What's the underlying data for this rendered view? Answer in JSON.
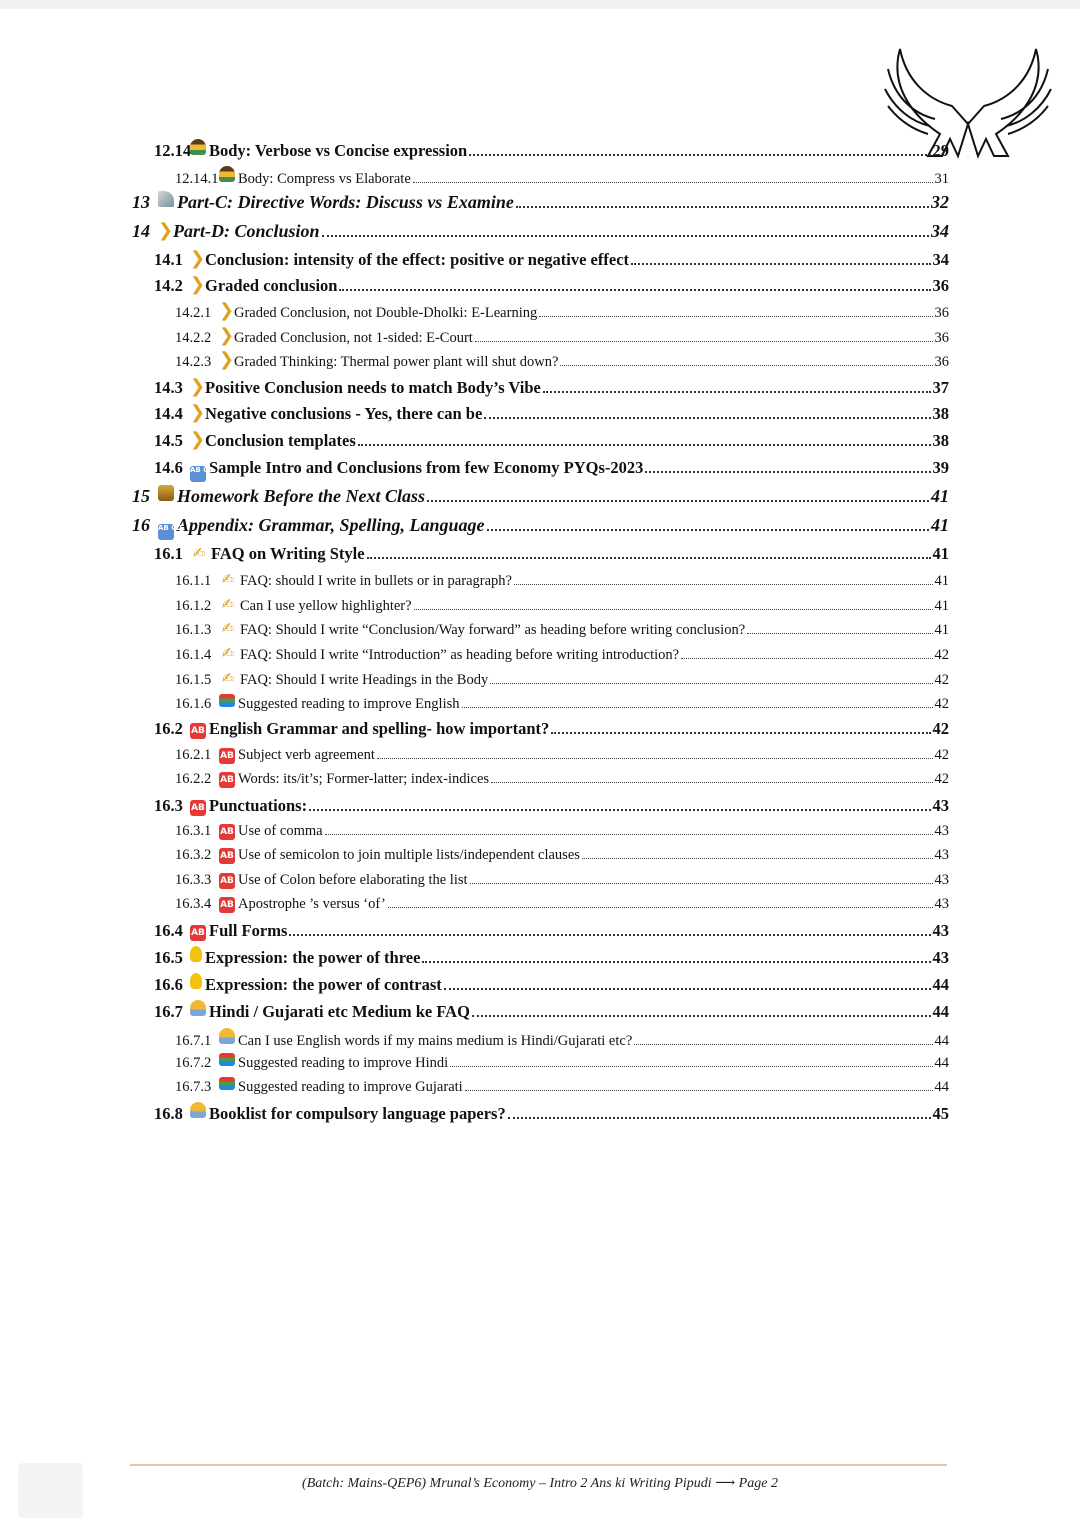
{
  "toc": [
    {
      "level": 2,
      "num": "12.14",
      "icon": "teacher",
      "title": "Body: Verbose vs Concise expression",
      "page": "29"
    },
    {
      "level": 3,
      "num": "12.14.1",
      "icon": "teacher",
      "title": "Body: Compress vs Elaborate",
      "page": "31"
    },
    {
      "level": 1,
      "num": "13",
      "icon": "microscope",
      "title": "Part-C: Directive Words: Discuss vs Examine",
      "page": "32"
    },
    {
      "level": 1,
      "num": "14",
      "icon": "ear",
      "title": "Part-D: Conclusion",
      "page": "34"
    },
    {
      "level": 2,
      "num": "14.1",
      "icon": "ear",
      "title": "Conclusion: intensity of the effect: positive or negative effect",
      "page": "34"
    },
    {
      "level": 2,
      "num": "14.2",
      "icon": "ear",
      "title": "Graded conclusion",
      "page": "36"
    },
    {
      "level": 3,
      "num": "14.2.1",
      "icon": "ear",
      "title": "Graded Conclusion, not Double-Dholki: E-Learning",
      "page": "36"
    },
    {
      "level": 3,
      "num": "14.2.2",
      "icon": "ear",
      "title": "Graded Conclusion, not 1-sided: E-Court",
      "page": "36"
    },
    {
      "level": 3,
      "num": "14.2.3",
      "icon": "ear",
      "title": "Graded Thinking: Thermal power plant will shut down?",
      "page": "36"
    },
    {
      "level": 2,
      "num": "14.3",
      "icon": "ear",
      "title": "Positive Conclusion needs to match Body’s Vibe",
      "page": "37"
    },
    {
      "level": 2,
      "num": "14.4",
      "icon": "ear",
      "title": "Negative conclusions - Yes, there can be",
      "page": "38"
    },
    {
      "level": 2,
      "num": "14.5",
      "icon": "ear",
      "title": "Conclusion templates",
      "page": "38"
    },
    {
      "level": 2,
      "num": "14.6",
      "icon": "abcd",
      "title": "Sample Intro and Conclusions from few Economy PYQs-2023",
      "page": "39"
    },
    {
      "level": 1,
      "num": "15",
      "icon": "homework",
      "title": "Homework Before the Next Class",
      "page": "41"
    },
    {
      "level": 1,
      "num": "16",
      "icon": "abcd",
      "title": "Appendix: Grammar, Spelling, Language",
      "page": "41"
    },
    {
      "level": 2,
      "num": "16.1",
      "icon": "writing",
      "title": "FAQ on Writing Style",
      "page": "41"
    },
    {
      "level": 3,
      "num": "16.1.1",
      "icon": "writing",
      "title": "FAQ: should I write in bullets or in paragraph?",
      "page": "41"
    },
    {
      "level": 3,
      "num": "16.1.2",
      "icon": "writing",
      "title": "Can I use yellow highlighter?",
      "page": "41"
    },
    {
      "level": 3,
      "num": "16.1.3",
      "icon": "writing",
      "title": "FAQ: Should I write “Conclusion/Way forward” as heading before writing conclusion?",
      "page": "41"
    },
    {
      "level": 3,
      "num": "16.1.4",
      "icon": "writing",
      "title": "FAQ: Should I write “Introduction” as heading before writing introduction?",
      "page": "42"
    },
    {
      "level": 3,
      "num": "16.1.5",
      "icon": "writing",
      "title": "FAQ: Should I write Headings in the Body",
      "page": "42"
    },
    {
      "level": 3,
      "num": "16.1.6",
      "icon": "books",
      "title": "Suggested reading to improve English",
      "page": "42"
    },
    {
      "level": 2,
      "num": "16.2",
      "icon": "ab",
      "title": "English Grammar and spelling- how important?",
      "page": "42"
    },
    {
      "level": 3,
      "num": "16.2.1",
      "icon": "ab",
      "title": "Subject verb agreement",
      "page": "42"
    },
    {
      "level": 3,
      "num": "16.2.2",
      "icon": "ab",
      "title": "Words: its/it’s; Former-latter; index-indices",
      "page": "42"
    },
    {
      "level": 2,
      "num": "16.3",
      "icon": "ab",
      "title": "Punctuations:",
      "page": "43"
    },
    {
      "level": 3,
      "num": "16.3.1",
      "icon": "ab",
      "title": "Use of comma",
      "page": "43"
    },
    {
      "level": 3,
      "num": "16.3.2",
      "icon": "ab",
      "title": "Use of semicolon to join multiple lists/independent clauses",
      "page": "43"
    },
    {
      "level": 3,
      "num": "16.3.3",
      "icon": "ab",
      "title": "Use of Colon before elaborating the list",
      "page": "43"
    },
    {
      "level": 3,
      "num": "16.3.4",
      "icon": "ab",
      "title": "Apostrophe ’s versus ‘of’",
      "page": "43"
    },
    {
      "level": 2,
      "num": "16.4",
      "icon": "ab",
      "title": "Full Forms",
      "page": "43"
    },
    {
      "level": 2,
      "num": "16.5",
      "icon": "bulb",
      "title": "Expression: the power of three",
      "page": "43"
    },
    {
      "level": 2,
      "num": "16.6",
      "icon": "bulb",
      "title": "Expression: the power of contrast",
      "page": "44"
    },
    {
      "level": 2,
      "num": "16.7",
      "icon": "person",
      "title": "Hindi / Gujarati etc Medium ke FAQ",
      "page": "44"
    },
    {
      "level": 3,
      "num": "16.7.1",
      "icon": "person",
      "title": "Can I use English words if my mains medium is Hindi/Gujarati etc?",
      "page": "44"
    },
    {
      "level": 3,
      "num": "16.7.2",
      "icon": "books",
      "title": "Suggested reading to improve Hindi",
      "page": "44"
    },
    {
      "level": 3,
      "num": "16.7.3",
      "icon": "books",
      "title": "Suggested reading to improve Gujarati",
      "page": "44"
    },
    {
      "level": 2,
      "num": "16.8",
      "icon": "person",
      "title": "Booklist for compulsory language papers?",
      "page": "45"
    }
  ],
  "footer": {
    "text": "(Batch: Mains-QEP6) Mrunal’s Economy – Intro 2 Ans ki Writing Pipudi ⟶ Page 2"
  },
  "colors": {
    "footer_rule": "#f0c39e",
    "ab_icon": "#e53935",
    "abcd_icon": "#5b8fd6"
  }
}
